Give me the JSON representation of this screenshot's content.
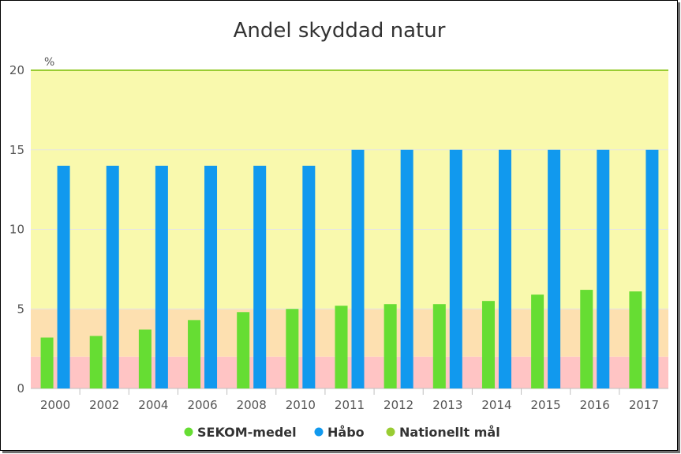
{
  "chart_data": {
    "type": "bar",
    "title": "Andel skyddad natur",
    "unit_label": "%",
    "ylim": [
      0,
      20
    ],
    "y_ticks": [
      "0",
      "5",
      "10",
      "15",
      "20"
    ],
    "categories": [
      "2000",
      "2002",
      "2004",
      "2006",
      "2008",
      "2010",
      "2011",
      "2012",
      "2013",
      "2014",
      "2015",
      "2016",
      "2017"
    ],
    "series": [
      {
        "name": "SEKOM-medel",
        "color": "#66dd33",
        "values": [
          3.2,
          3.3,
          3.7,
          4.3,
          4.8,
          5.0,
          5.2,
          5.3,
          5.3,
          5.5,
          5.9,
          6.2,
          6.1
        ]
      },
      {
        "name": "Håbo",
        "color": "#1199ee",
        "values": [
          14,
          14,
          14,
          14,
          14,
          14,
          15,
          15,
          15,
          15,
          15,
          15,
          15
        ]
      }
    ],
    "target_line": {
      "name": "Nationellt mål",
      "value": 20,
      "color": "#99cc33"
    },
    "background_bands": [
      {
        "from": 0,
        "to": 2,
        "color": "#ffc4c4"
      },
      {
        "from": 2,
        "to": 5,
        "color": "#fde0b0"
      },
      {
        "from": 5,
        "to": 20,
        "color": "#f9f9ad"
      }
    ],
    "legend": {
      "position": "bottom",
      "items": [
        {
          "label": "SEKOM-medel",
          "color": "#66dd33"
        },
        {
          "label": "Håbo",
          "color": "#1199ee"
        },
        {
          "label": "Nationellt mål",
          "color": "#99cc33"
        }
      ]
    },
    "grid": true
  }
}
